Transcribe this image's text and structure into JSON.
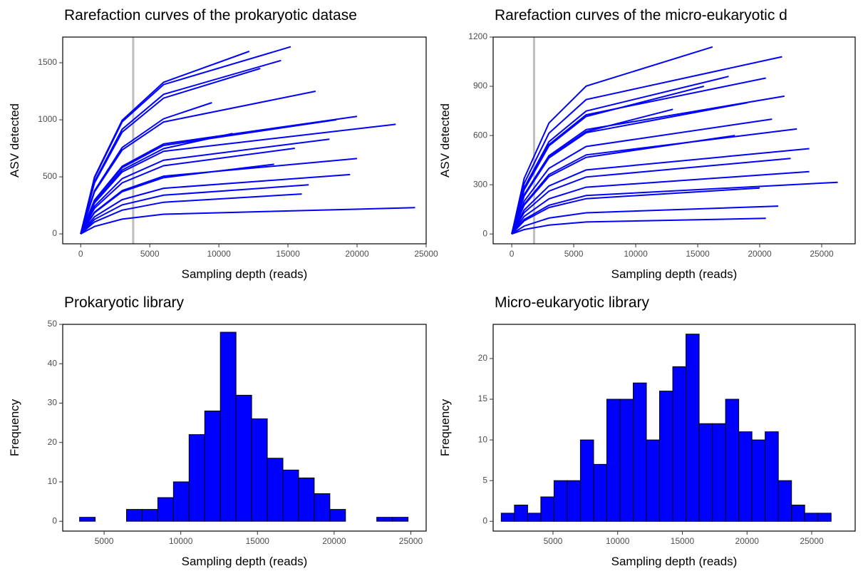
{
  "chart_data": [
    {
      "type": "line",
      "title": "Rarefaction curves of the prokaryotic datase",
      "xlabel": "Sampling depth (reads)",
      "ylabel": "ASV detected",
      "color": "#0000ff",
      "vline": 3800,
      "vline_color": "#bebebe",
      "xlim": [
        -1300,
        25000
      ],
      "xticks": [
        0,
        5000,
        10000,
        15000,
        20000,
        25000
      ],
      "ylim": [
        -87,
        1725
      ],
      "yticks": [
        0,
        500,
        1000,
        1500
      ],
      "series": [
        {
          "x": [
            0,
            1000,
            3000,
            6000,
            15200
          ],
          "values": [
            0,
            491,
            982,
            1309,
            1640
          ]
        },
        {
          "x": [
            0,
            1000,
            3000,
            6000,
            12200
          ],
          "values": [
            0,
            498,
            996,
            1329,
            1600
          ]
        },
        {
          "x": [
            0,
            1000,
            3000,
            6000,
            14500
          ],
          "values": [
            0,
            458,
            917,
            1223,
            1520
          ]
        },
        {
          "x": [
            0,
            1000,
            3000,
            6000,
            13000
          ],
          "values": [
            0,
            446,
            892,
            1190,
            1450
          ]
        },
        {
          "x": [
            0,
            1000,
            3000,
            6000,
            17000
          ],
          "values": [
            0,
            368,
            735,
            981,
            1250
          ]
        },
        {
          "x": [
            0,
            1000,
            3000,
            6000,
            20000
          ],
          "values": [
            0,
            296,
            592,
            789,
            1030
          ]
        },
        {
          "x": [
            0,
            1000,
            3000,
            6000,
            22800
          ],
          "values": [
            0,
            271,
            543,
            724,
            960
          ]
        },
        {
          "x": [
            0,
            1000,
            3000,
            6000,
            18000
          ],
          "values": [
            0,
            242,
            484,
            646,
            830
          ]
        },
        {
          "x": [
            0,
            1000,
            3000,
            6000,
            20000
          ],
          "values": [
            0,
            190,
            379,
            506,
            660
          ]
        },
        {
          "x": [
            0,
            1000,
            3000,
            6000,
            19500
          ],
          "values": [
            0,
            150,
            300,
            400,
            520
          ]
        },
        {
          "x": [
            0,
            1000,
            3000,
            6000,
            16500
          ],
          "values": [
            0,
            127,
            254,
            339,
            430
          ]
        },
        {
          "x": [
            0,
            1000,
            3000,
            6000,
            16000
          ],
          "values": [
            0,
            104,
            208,
            277,
            350
          ]
        },
        {
          "x": [
            0,
            1000,
            3000,
            6000,
            24200
          ],
          "values": [
            0,
            65,
            129,
            172,
            230
          ]
        },
        {
          "x": [
            0,
            1000,
            3000,
            6000,
            14000
          ],
          "values": [
            0,
            185,
            370,
            493,
            610
          ]
        },
        {
          "x": [
            0,
            1000,
            3000,
            6000,
            11000
          ],
          "values": [
            0,
            280,
            560,
            747,
            880
          ]
        },
        {
          "x": [
            0,
            1000,
            3000,
            6000,
            9500
          ],
          "values": [
            0,
            378,
            757,
            1009,
            1150
          ]
        },
        {
          "x": [
            0,
            1000,
            3000,
            6000,
            15500
          ],
          "values": [
            0,
            224,
            447,
            597,
            750
          ]
        },
        {
          "x": [
            0,
            1000,
            3000,
            6000,
            18500
          ],
          "values": [
            0,
            291,
            581,
            775,
            1000
          ]
        }
      ]
    },
    {
      "type": "line",
      "title": "Rarefaction curves of the micro-eukaryotic d",
      "xlabel": "Sampling depth (reads)",
      "ylabel": "ASV detected",
      "color": "#0000ff",
      "vline": 1800,
      "vline_color": "#bebebe",
      "xlim": [
        -1500,
        27700
      ],
      "xticks": [
        0,
        5000,
        10000,
        15000,
        20000,
        25000
      ],
      "ylim": [
        -60,
        1200
      ],
      "yticks": [
        0,
        300,
        600,
        900,
        1200
      ],
      "series": [
        {
          "x": [
            0,
            1000,
            3000,
            6000,
            16200
          ],
          "values": [
            0,
            338,
            676,
            901,
            1140
          ]
        },
        {
          "x": [
            0,
            1000,
            3000,
            6000,
            21800
          ],
          "values": [
            0,
            307,
            614,
            819,
            1080
          ]
        },
        {
          "x": [
            0,
            1000,
            3000,
            6000,
            17500
          ],
          "values": [
            0,
            281,
            562,
            749,
            960
          ]
        },
        {
          "x": [
            0,
            1000,
            3000,
            6000,
            20500
          ],
          "values": [
            0,
            272,
            545,
            726,
            950
          ]
        },
        {
          "x": [
            0,
            1000,
            3000,
            6000,
            15500
          ],
          "values": [
            0,
            269,
            537,
            716,
            900
          ]
        },
        {
          "x": [
            0,
            1000,
            3000,
            6000,
            22000
          ],
          "values": [
            0,
            239,
            477,
            636,
            840
          ]
        },
        {
          "x": [
            0,
            1000,
            3000,
            6000,
            19000
          ],
          "values": [
            0,
            231,
            463,
            617,
            800
          ]
        },
        {
          "x": [
            0,
            1000,
            3000,
            6000,
            21000
          ],
          "values": [
            0,
            200,
            400,
            533,
            700
          ]
        },
        {
          "x": [
            0,
            1000,
            3000,
            6000,
            23000
          ],
          "values": [
            0,
            181,
            362,
            482,
            640
          ]
        },
        {
          "x": [
            0,
            1000,
            3000,
            6000,
            24000
          ],
          "values": [
            0,
            146,
            293,
            390,
            520
          ]
        },
        {
          "x": [
            0,
            1000,
            3000,
            6000,
            26300
          ],
          "values": [
            0,
            88,
            175,
            234,
            315
          ]
        },
        {
          "x": [
            0,
            1000,
            3000,
            6000,
            24000
          ],
          "values": [
            0,
            107,
            214,
            285,
            380
          ]
        },
        {
          "x": [
            0,
            1000,
            3000,
            6000,
            20000
          ],
          "values": [
            0,
            80,
            161,
            215,
            280
          ]
        },
        {
          "x": [
            0,
            1000,
            3000,
            6000,
            21500
          ],
          "values": [
            0,
            48,
            97,
            129,
            170
          ]
        },
        {
          "x": [
            0,
            1000,
            3000,
            6000,
            20500
          ],
          "values": [
            0,
            27,
            54,
            73,
            95
          ]
        },
        {
          "x": [
            0,
            1000,
            3000,
            6000,
            18000
          ],
          "values": [
            0,
            175,
            350,
            467,
            600
          ]
        },
        {
          "x": [
            0,
            1000,
            3000,
            6000,
            13000
          ],
          "values": [
            0,
            234,
            468,
            624,
            760
          ]
        },
        {
          "x": [
            0,
            1000,
            3000,
            6000,
            22500
          ],
          "values": [
            0,
            130,
            261,
            347,
            460
          ]
        }
      ]
    },
    {
      "type": "histogram",
      "title": "Prokaryotic library",
      "xlabel": "Sampling depth (reads)",
      "ylabel": "Frequency",
      "color": "#0000ff",
      "xlim": [
        2300,
        26000
      ],
      "xticks": [
        5000,
        10000,
        15000,
        20000,
        25000
      ],
      "ylim": [
        -2.5,
        50
      ],
      "yticks": [
        0,
        10,
        20,
        30,
        40,
        50
      ],
      "bins": [
        3400,
        4420,
        5440,
        6460,
        7480,
        8500,
        9520,
        10540,
        11560,
        12580,
        13600,
        14620,
        15640,
        16660,
        17680,
        18700,
        19720,
        20740,
        21760,
        22780,
        23800,
        24820
      ],
      "values": [
        1,
        0,
        0,
        3,
        3,
        6,
        10,
        22,
        28,
        48,
        32,
        26,
        16,
        13,
        11,
        7,
        3,
        0,
        0,
        1,
        1
      ]
    },
    {
      "type": "histogram",
      "title": "Micro-eukaryotic library",
      "xlabel": "Sampling depth (reads)",
      "ylabel": "Frequency",
      "color": "#0000ff",
      "xlim": [
        375,
        28360
      ],
      "xticks": [
        5000,
        10000,
        15000,
        20000,
        25000
      ],
      "ylim": [
        -1.2,
        24.2
      ],
      "yticks": [
        0,
        5,
        10,
        15,
        20
      ],
      "bins": [
        1000,
        2020,
        3040,
        4060,
        5080,
        6100,
        7120,
        8140,
        9160,
        10180,
        11200,
        12220,
        13240,
        14260,
        15280,
        16300,
        17320,
        18340,
        19360,
        20380,
        21400,
        22420,
        23440,
        24460,
        25480,
        26500
      ],
      "values": [
        1,
        2,
        1,
        3,
        5,
        5,
        10,
        7,
        15,
        15,
        17,
        10,
        16,
        19,
        23,
        12,
        12,
        15,
        11,
        10,
        11,
        5,
        2,
        1,
        1
      ]
    }
  ]
}
